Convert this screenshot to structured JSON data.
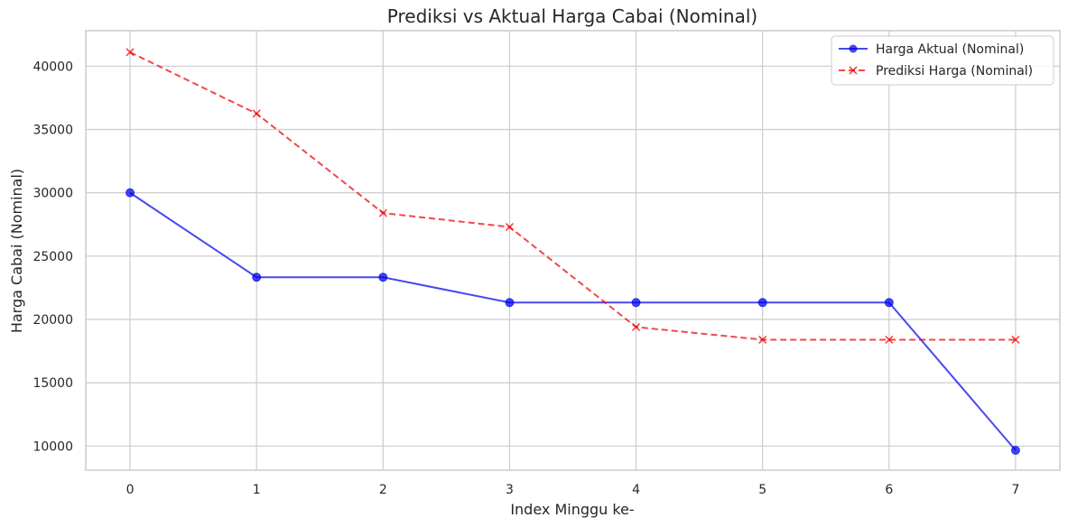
{
  "chart_data": {
    "type": "line",
    "title": "Prediksi vs Aktual Harga Cabai (Nominal)",
    "xlabel": "Index Minggu ke-",
    "ylabel": "Harga Cabai (Nominal)",
    "x": [
      0,
      1,
      2,
      3,
      4,
      5,
      6,
      7
    ],
    "xlim": [
      -0.35,
      7.35
    ],
    "ylim": [
      8100,
      42800
    ],
    "yticks": [
      10000,
      15000,
      20000,
      25000,
      30000,
      35000,
      40000
    ],
    "grid": true,
    "legend_position": "top-right",
    "series": [
      {
        "name": "Harga Aktual (Nominal)",
        "values": [
          30000,
          23333,
          23333,
          21333,
          21333,
          21333,
          21333,
          9667
        ],
        "color": "#0000ee",
        "style": "solid",
        "marker": "circle"
      },
      {
        "name": "Prediksi Harga (Nominal)",
        "values": [
          41100,
          36250,
          28400,
          27300,
          19400,
          18400,
          18400,
          18400
        ],
        "color": "#ee0000",
        "style": "dashed",
        "marker": "x"
      }
    ]
  }
}
